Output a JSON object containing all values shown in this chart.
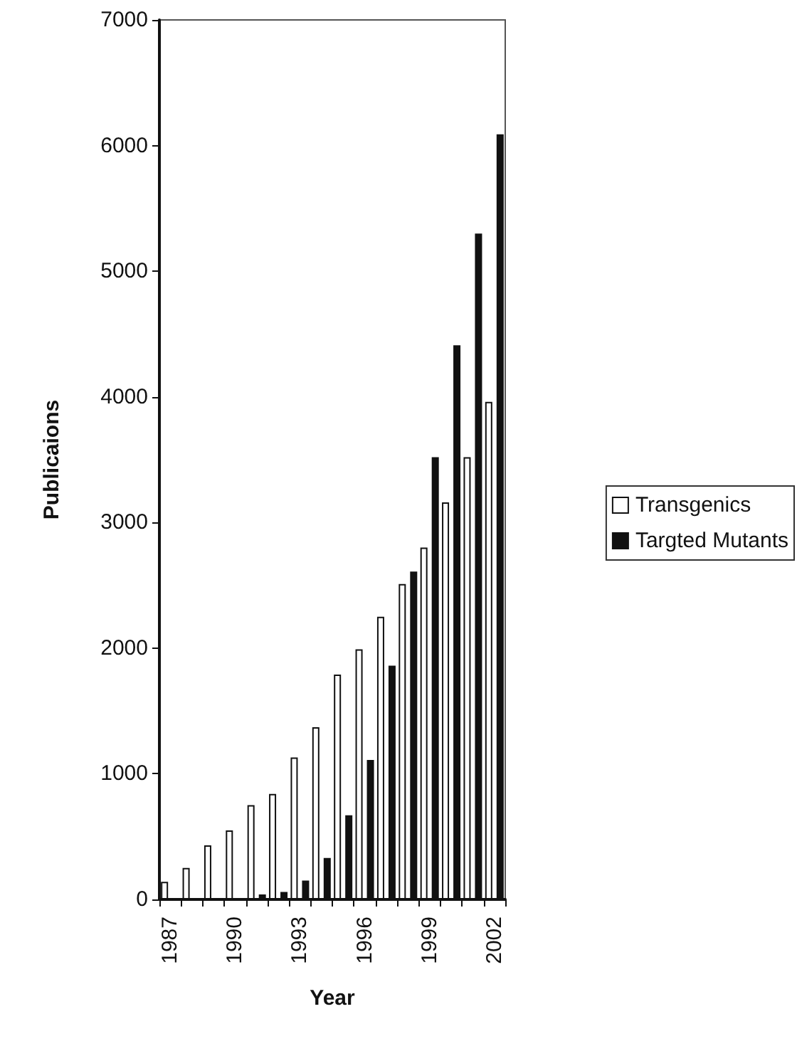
{
  "chart_data": {
    "type": "bar",
    "xlabel": "Year",
    "ylabel": "Publicaions",
    "categories": [
      "1987",
      null,
      null,
      "1990",
      null,
      null,
      "1993",
      null,
      null,
      "1996",
      null,
      null,
      "1999",
      null,
      null,
      "2002"
    ],
    "series": [
      {
        "name": "Transgenics",
        "color": "#ffffff",
        "values": [
          140,
          250,
          430,
          550,
          750,
          840,
          1130,
          1370,
          1790,
          1990,
          2250,
          2510,
          2800,
          3160,
          3520,
          3960
        ]
      },
      {
        "name": "Targted Mutants",
        "color": "#111111",
        "values": [
          0,
          0,
          10,
          10,
          40,
          60,
          150,
          330,
          670,
          1110,
          1860,
          2610,
          3520,
          4410,
          5300,
          6090
        ]
      }
    ],
    "ylim": [
      0,
      7000
    ],
    "yticks": [
      0,
      1000,
      2000,
      3000,
      4000,
      5000,
      6000,
      7000
    ],
    "grid": false,
    "legend": "right"
  }
}
